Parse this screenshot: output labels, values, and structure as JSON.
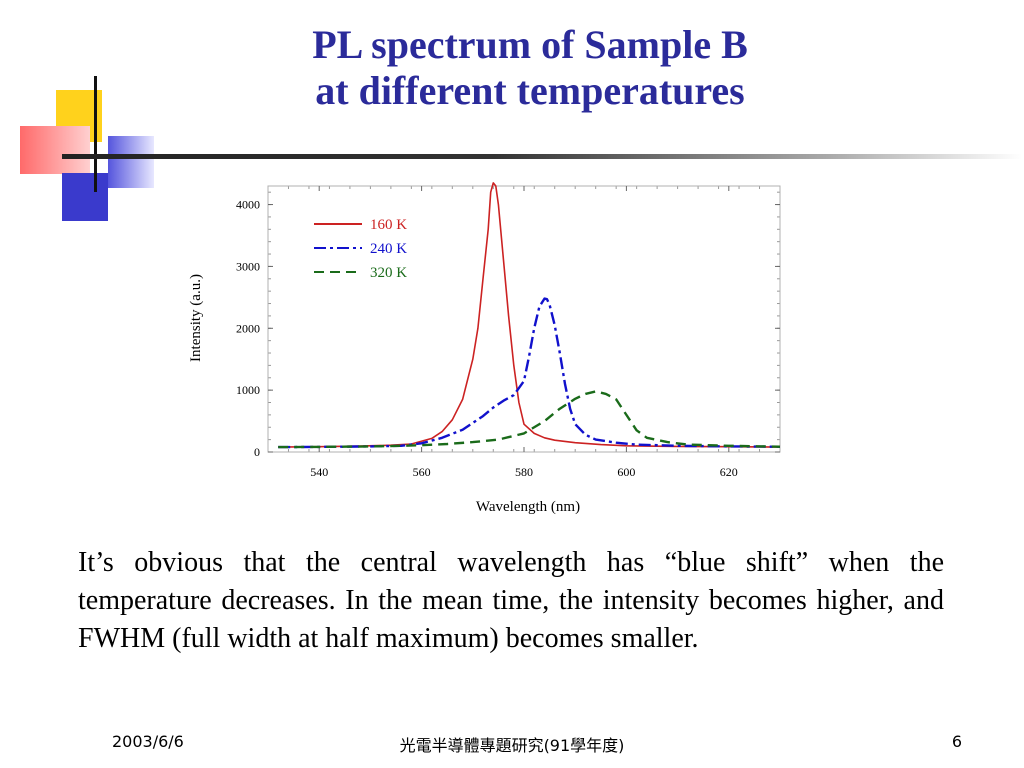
{
  "slide": {
    "title_line1": "PL spectrum of Sample B",
    "title_line2": "at different temperatures",
    "paragraph": "It’s obvious that the central wavelength has “blue shift” when the temperature decreases. In the mean time, the intensity becomes higher, and FWHM (full width at half maximum) becomes smaller.",
    "footer": {
      "date": "2003/6/6",
      "course": "光電半導體專題研究(91學年度)",
      "page": "6"
    }
  },
  "colors": {
    "title": "#2b2b9a",
    "s160": "#cc2222",
    "s240": "#1111cc",
    "s320": "#1a6b1a"
  },
  "chart_data": {
    "type": "line",
    "xlabel": "Wavelength (nm)",
    "ylabel": "Intensity (a.u.)",
    "xlim": [
      530,
      630
    ],
    "ylim": [
      0,
      4300
    ],
    "xticks": [
      540,
      560,
      580,
      600,
      620
    ],
    "yticks": [
      0,
      1000,
      2000,
      3000,
      4000
    ],
    "legend_position": "top-left",
    "series": [
      {
        "name": "160 K",
        "style": "solid",
        "color": "#cc2222",
        "x": [
          532,
          540,
          548,
          554,
          558,
          562,
          564,
          566,
          568,
          570,
          571,
          572,
          573,
          573.5,
          574,
          574.5,
          575,
          576,
          577,
          578,
          579,
          580,
          582,
          584,
          586,
          590,
          595,
          600,
          610,
          620,
          630
        ],
        "y": [
          80,
          85,
          95,
          110,
          130,
          220,
          330,
          520,
          850,
          1500,
          2000,
          2800,
          3600,
          4200,
          4350,
          4300,
          4000,
          3100,
          2200,
          1400,
          800,
          450,
          300,
          230,
          190,
          150,
          120,
          100,
          90,
          85,
          80
        ]
      },
      {
        "name": "240 K",
        "style": "dashdot",
        "color": "#1111cc",
        "x": [
          532,
          540,
          550,
          556,
          560,
          564,
          568,
          572,
          574,
          576,
          578,
          580,
          581,
          582,
          583,
          584,
          584.5,
          585,
          586,
          587,
          588,
          589,
          590,
          592,
          594,
          598,
          602,
          610,
          620,
          630
        ],
        "y": [
          80,
          82,
          90,
          100,
          140,
          230,
          360,
          580,
          720,
          830,
          920,
          1150,
          1550,
          2000,
          2350,
          2480,
          2470,
          2380,
          2050,
          1600,
          1100,
          700,
          450,
          280,
          200,
          150,
          120,
          100,
          90,
          85
        ]
      },
      {
        "name": "320 K",
        "style": "dashed",
        "color": "#1a6b1a",
        "x": [
          532,
          540,
          550,
          556,
          560,
          565,
          570,
          575,
          580,
          584,
          587,
          590,
          592,
          594,
          596,
          598,
          600,
          602,
          604,
          608,
          612,
          620,
          630
        ],
        "y": [
          80,
          82,
          90,
          100,
          110,
          130,
          160,
          200,
          300,
          500,
          700,
          860,
          940,
          980,
          940,
          850,
          600,
          350,
          230,
          160,
          120,
          100,
          85
        ]
      }
    ]
  }
}
